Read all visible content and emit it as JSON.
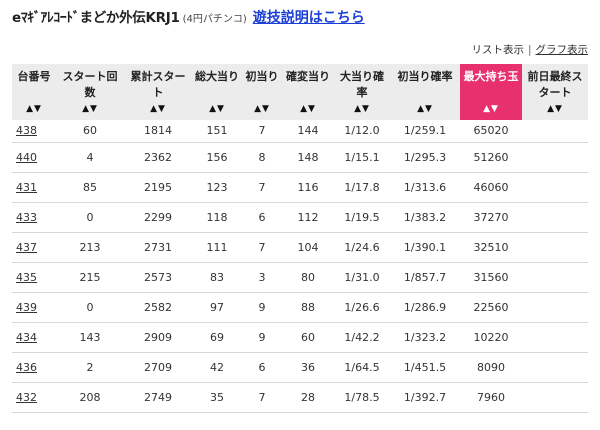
{
  "header": {
    "title": "eﾏｷﾞｱﾚｺｰﾄﾞまどか外伝KRJ1",
    "subtitle": "(4円パチンコ)",
    "link": "遊技説明はこちら"
  },
  "view_switch": {
    "list_label": "リスト表示",
    "separator": "|",
    "graph_label": "グラフ表示"
  },
  "table": {
    "sort_symbol": "▲▼",
    "columns": [
      {
        "key": "machine",
        "label": "台番号"
      },
      {
        "key": "start_count",
        "label": "スタート回数"
      },
      {
        "key": "total_start",
        "label": "累計スタート"
      },
      {
        "key": "total_hits",
        "label": "総大当り"
      },
      {
        "key": "first_hits",
        "label": "初当り"
      },
      {
        "key": "kakuhen_hits",
        "label": "確変当り"
      },
      {
        "key": "hit_prob",
        "label": "大当り確率"
      },
      {
        "key": "first_prob",
        "label": "初当り確率"
      },
      {
        "key": "max_balls",
        "label": "最大持ち玉"
      },
      {
        "key": "prev_final",
        "label": "前日最終スタート"
      }
    ],
    "rows": [
      {
        "machine": "438",
        "start_count": "60",
        "total_start": "1814",
        "total_hits": "151",
        "first_hits": "7",
        "kakuhen_hits": "144",
        "hit_prob": "1/12.0",
        "first_prob": "1/259.1",
        "max_balls": "65020",
        "prev_final": ""
      },
      {
        "machine": "440",
        "start_count": "4",
        "total_start": "2362",
        "total_hits": "156",
        "first_hits": "8",
        "kakuhen_hits": "148",
        "hit_prob": "1/15.1",
        "first_prob": "1/295.3",
        "max_balls": "51260",
        "prev_final": ""
      },
      {
        "machine": "431",
        "start_count": "85",
        "total_start": "2195",
        "total_hits": "123",
        "first_hits": "7",
        "kakuhen_hits": "116",
        "hit_prob": "1/17.8",
        "first_prob": "1/313.6",
        "max_balls": "46060",
        "prev_final": ""
      },
      {
        "machine": "433",
        "start_count": "0",
        "total_start": "2299",
        "total_hits": "118",
        "first_hits": "6",
        "kakuhen_hits": "112",
        "hit_prob": "1/19.5",
        "first_prob": "1/383.2",
        "max_balls": "37270",
        "prev_final": ""
      },
      {
        "machine": "437",
        "start_count": "213",
        "total_start": "2731",
        "total_hits": "111",
        "first_hits": "7",
        "kakuhen_hits": "104",
        "hit_prob": "1/24.6",
        "first_prob": "1/390.1",
        "max_balls": "32510",
        "prev_final": ""
      },
      {
        "machine": "435",
        "start_count": "215",
        "total_start": "2573",
        "total_hits": "83",
        "first_hits": "3",
        "kakuhen_hits": "80",
        "hit_prob": "1/31.0",
        "first_prob": "1/857.7",
        "max_balls": "31560",
        "prev_final": ""
      },
      {
        "machine": "439",
        "start_count": "0",
        "total_start": "2582",
        "total_hits": "97",
        "first_hits": "9",
        "kakuhen_hits": "88",
        "hit_prob": "1/26.6",
        "first_prob": "1/286.9",
        "max_balls": "22560",
        "prev_final": ""
      },
      {
        "machine": "434",
        "start_count": "143",
        "total_start": "2909",
        "total_hits": "69",
        "first_hits": "9",
        "kakuhen_hits": "60",
        "hit_prob": "1/42.2",
        "first_prob": "1/323.2",
        "max_balls": "10220",
        "prev_final": ""
      },
      {
        "machine": "436",
        "start_count": "2",
        "total_start": "2709",
        "total_hits": "42",
        "first_hits": "6",
        "kakuhen_hits": "36",
        "hit_prob": "1/64.5",
        "first_prob": "1/451.5",
        "max_balls": "8090",
        "prev_final": ""
      },
      {
        "machine": "432",
        "start_count": "208",
        "total_start": "2749",
        "total_hits": "35",
        "first_hits": "7",
        "kakuhen_hits": "28",
        "hit_prob": "1/78.5",
        "first_prob": "1/392.7",
        "max_balls": "7960",
        "prev_final": ""
      }
    ],
    "highlight_column": "max_balls",
    "highlight_color": "#e8306e",
    "header_bg": "#ececec"
  }
}
